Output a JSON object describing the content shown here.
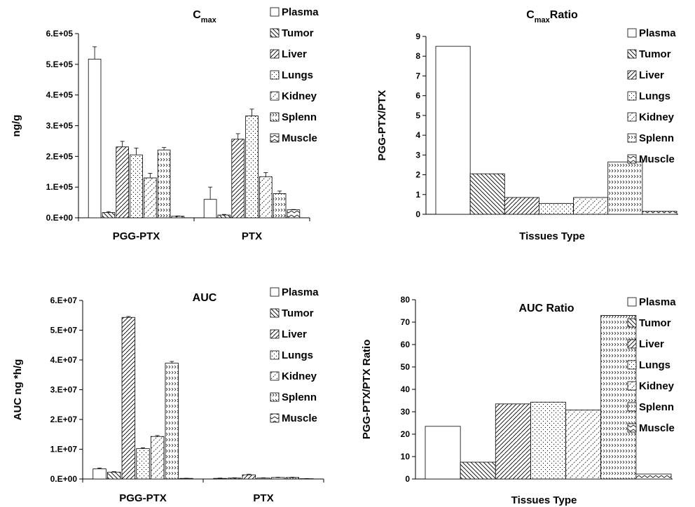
{
  "chart_data": [
    {
      "id": "cmax",
      "type": "bar",
      "title": "C",
      "title_sub": "max",
      "ylabel": "ng/g",
      "xlabel": "",
      "categories": [
        "PGG-PTX",
        "PTX"
      ],
      "yticks": [
        "0.E+00",
        "1.E+05",
        "2.E+05",
        "3.E+05",
        "4.E+05",
        "5.E+05",
        "6.E+05"
      ],
      "ylim": [
        0,
        600000
      ],
      "legend": [
        "Plasma",
        "Tumor",
        "Liver",
        "Lungs",
        "Kidney",
        "Splenn",
        "Muscle"
      ],
      "legend_position": "right",
      "series": [
        {
          "name": "Plasma",
          "values": [
            517000,
            60000
          ],
          "errors": [
            40000,
            40000
          ]
        },
        {
          "name": "Tumor",
          "values": [
            17000,
            9000
          ],
          "errors": [
            3000,
            2000
          ]
        },
        {
          "name": "Liver",
          "values": [
            231000,
            256000
          ],
          "errors": [
            18000,
            18000
          ]
        },
        {
          "name": "Lungs",
          "values": [
            205000,
            332000
          ],
          "errors": [
            22000,
            22000
          ]
        },
        {
          "name": "Kidney",
          "values": [
            130000,
            134000
          ],
          "errors": [
            15000,
            13000
          ]
        },
        {
          "name": "Splenn",
          "values": [
            221000,
            79000
          ],
          "errors": [
            8000,
            8000
          ]
        },
        {
          "name": "Muscle",
          "values": [
            5000,
            26000
          ],
          "errors": [
            1000,
            1000
          ]
        }
      ]
    },
    {
      "id": "cmax-ratio",
      "type": "bar",
      "title": "C",
      "title_sub": "max",
      "title_rest": "Ratio",
      "ylabel": "PGG-PTX/PTX",
      "xlabel": "Tissues Type",
      "yticks": [
        "0",
        "1",
        "2",
        "3",
        "4",
        "5",
        "6",
        "7",
        "8",
        "9"
      ],
      "ylim": [
        0,
        9
      ],
      "legend": [
        "Plasma",
        "Tumor",
        "Liver",
        "Lungs",
        "Kidney",
        "Splenn",
        "Muscle"
      ],
      "legend_position": "right",
      "values": [
        8.5,
        2.05,
        0.85,
        0.55,
        0.85,
        2.65,
        0.15
      ]
    },
    {
      "id": "auc",
      "type": "bar",
      "title": "AUC",
      "ylabel": "AUC ng *h/g",
      "xlabel": "",
      "categories": [
        "PGG-PTX",
        "PTX"
      ],
      "yticks": [
        "0.E+00",
        "1.E+07",
        "2.E+07",
        "3.E+07",
        "4.E+07",
        "5.E+07",
        "6.E+07"
      ],
      "ylim": [
        0,
        60000000
      ],
      "legend": [
        "Plasma",
        "Tumor",
        "Liver",
        "Lungs",
        "Kidney",
        "Splenn",
        "Muscle"
      ],
      "legend_position": "right",
      "series": [
        {
          "name": "Plasma",
          "values": [
            3400000,
            200000
          ],
          "errors": [
            300000,
            100000
          ]
        },
        {
          "name": "Tumor",
          "values": [
            2300000,
            300000
          ],
          "errors": [
            200000,
            100000
          ]
        },
        {
          "name": "Liver",
          "values": [
            54300000,
            1400000
          ],
          "errors": [
            300000,
            200000
          ]
        },
        {
          "name": "Lungs",
          "values": [
            10200000,
            300000
          ],
          "errors": [
            300000,
            100000
          ]
        },
        {
          "name": "Kidney",
          "values": [
            14300000,
            500000
          ],
          "errors": [
            300000,
            100000
          ]
        },
        {
          "name": "Splenn",
          "values": [
            38900000,
            500000
          ],
          "errors": [
            600000,
            100000
          ]
        },
        {
          "name": "Muscle",
          "values": [
            200000,
            100000
          ],
          "errors": [
            50000,
            50000
          ]
        }
      ]
    },
    {
      "id": "auc-ratio",
      "type": "bar",
      "title": "AUC Ratio",
      "ylabel": "PGG-PTX/PTX Ratio",
      "xlabel": "Tissues Type",
      "yticks": [
        "0",
        "10",
        "20",
        "30",
        "40",
        "50",
        "60",
        "70",
        "80"
      ],
      "ylim": [
        0,
        80
      ],
      "legend": [
        "Plasma",
        "Tumor",
        "Liver",
        "Lungs",
        "Kidney",
        "Splenn",
        "Muscle"
      ],
      "legend_position": "right",
      "values": [
        23.5,
        7.5,
        33.5,
        34.3,
        30.8,
        73.0,
        2.2
      ]
    }
  ]
}
